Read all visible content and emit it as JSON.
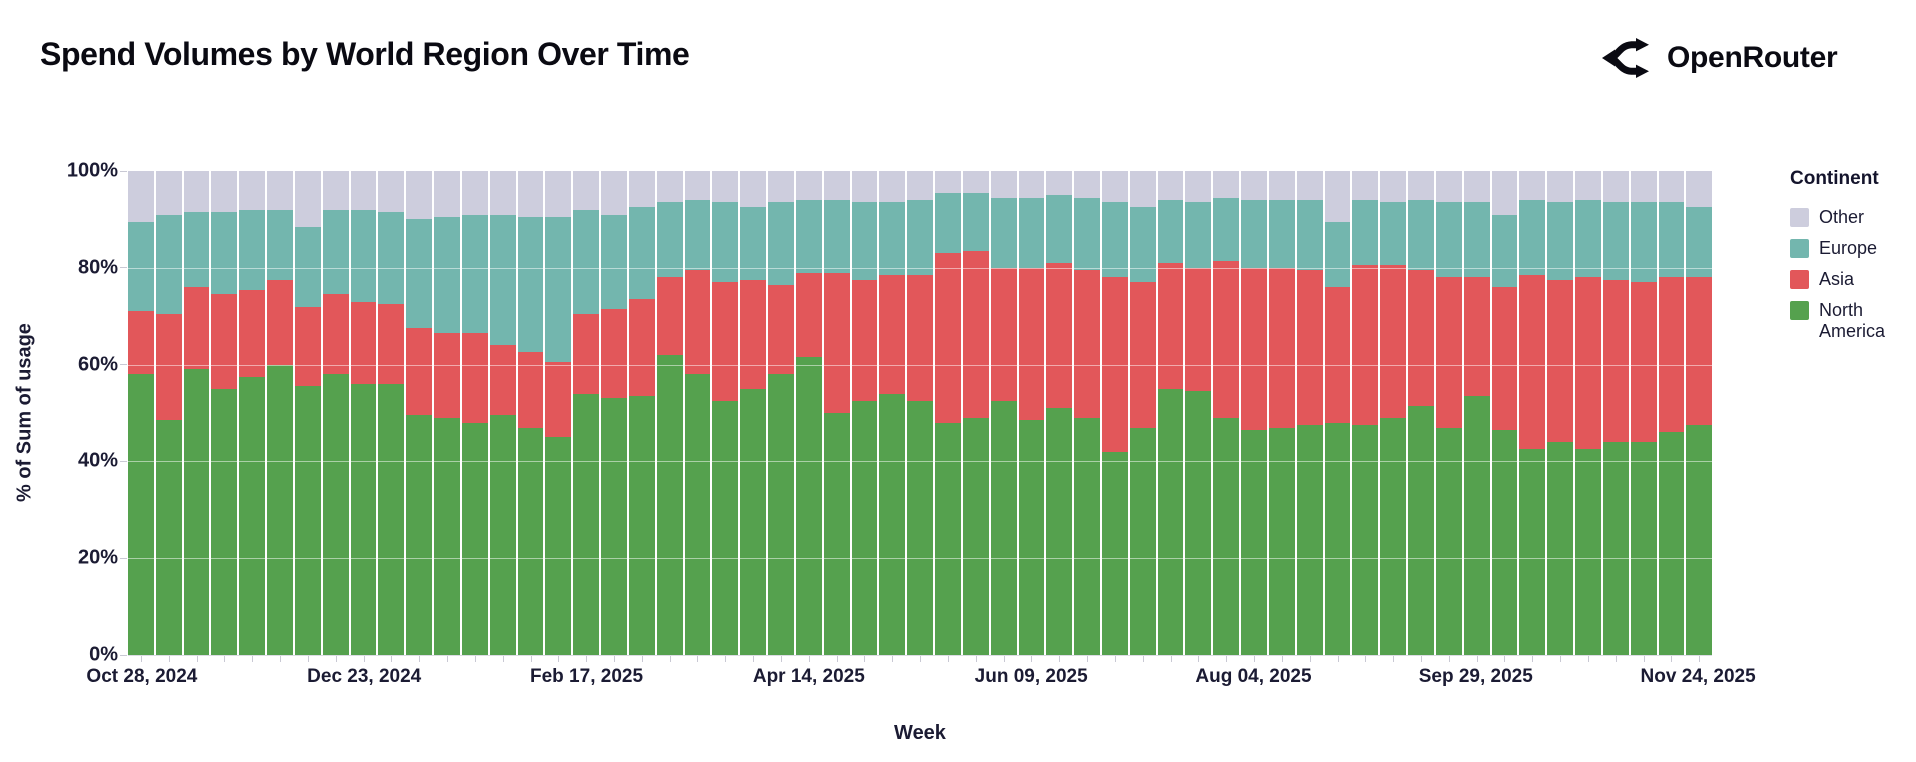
{
  "header": {
    "title": "Spend Volumes by World Region Over Time",
    "brand": "OpenRouter"
  },
  "chart_data": {
    "type": "bar",
    "stacked": true,
    "normalized_percent": true,
    "title": "Spend Volumes by World Region Over Time",
    "xlabel": "Week",
    "ylabel": "% of Sum of usage",
    "ylim": [
      0,
      100
    ],
    "y_ticks": [
      0,
      20,
      40,
      60,
      80,
      100
    ],
    "y_tick_labels": [
      "0%",
      "20%",
      "40%",
      "60%",
      "80%",
      "100%"
    ],
    "x_tick_indices": [
      0,
      8,
      16,
      24,
      32,
      40,
      48,
      56
    ],
    "x_tick_labels": [
      "Oct 28, 2024",
      "Dec 23, 2024",
      "Feb 17, 2025",
      "Apr 14, 2025",
      "Jun 09, 2025",
      "Aug 04, 2025",
      "Sep 29, 2025",
      "Nov 24, 2025"
    ],
    "categories": [
      "Oct 28, 2024",
      "Nov 04, 2024",
      "Nov 11, 2024",
      "Nov 18, 2024",
      "Nov 25, 2024",
      "Dec 02, 2024",
      "Dec 09, 2024",
      "Dec 16, 2024",
      "Dec 23, 2024",
      "Dec 30, 2024",
      "Jan 06, 2025",
      "Jan 13, 2025",
      "Jan 20, 2025",
      "Jan 27, 2025",
      "Feb 03, 2025",
      "Feb 10, 2025",
      "Feb 17, 2025",
      "Feb 24, 2025",
      "Mar 03, 2025",
      "Mar 10, 2025",
      "Mar 17, 2025",
      "Mar 24, 2025",
      "Mar 31, 2025",
      "Apr 07, 2025",
      "Apr 14, 2025",
      "Apr 21, 2025",
      "Apr 28, 2025",
      "May 05, 2025",
      "May 12, 2025",
      "May 19, 2025",
      "May 26, 2025",
      "Jun 02, 2025",
      "Jun 09, 2025",
      "Jun 16, 2025",
      "Jun 23, 2025",
      "Jun 30, 2025",
      "Jul 07, 2025",
      "Jul 14, 2025",
      "Jul 21, 2025",
      "Jul 28, 2025",
      "Aug 04, 2025",
      "Aug 11, 2025",
      "Aug 18, 2025",
      "Aug 25, 2025",
      "Sep 01, 2025",
      "Sep 08, 2025",
      "Sep 15, 2025",
      "Sep 22, 2025",
      "Sep 29, 2025",
      "Oct 06, 2025",
      "Oct 13, 2025",
      "Oct 20, 2025",
      "Oct 27, 2025",
      "Nov 03, 2025",
      "Nov 10, 2025",
      "Nov 17, 2025",
      "Nov 24, 2025"
    ],
    "series": [
      {
        "name": "North America",
        "color": "#55a14e",
        "values": [
          58,
          48.5,
          59,
          55,
          57.5,
          60,
          55.5,
          58,
          56,
          56,
          49.5,
          49,
          48,
          49.5,
          47,
          45,
          54,
          53,
          53.5,
          62,
          58,
          52.5,
          55,
          58,
          61.5,
          50,
          52.5,
          54,
          52.5,
          48,
          49,
          52.5,
          48.5,
          51,
          49,
          42,
          47,
          55,
          54.5,
          49,
          46.5,
          47,
          47.5,
          48,
          47.5,
          49,
          51.5,
          47,
          53.5,
          46.5,
          42.5,
          44,
          42.5,
          44,
          44,
          46,
          47.5
        ]
      },
      {
        "name": "Asia",
        "color": "#e2575a",
        "values": [
          13,
          22,
          17,
          19.5,
          18,
          17.5,
          16.5,
          16.5,
          17,
          16.5,
          18,
          17.5,
          18.5,
          14.5,
          15.5,
          15.5,
          16.5,
          18.5,
          20,
          16,
          21.5,
          24.5,
          22.5,
          18.5,
          17.5,
          29,
          25,
          24.5,
          26,
          35,
          34.5,
          27.5,
          31.5,
          30,
          30.5,
          36,
          30,
          26,
          25.5,
          32.5,
          33.5,
          33,
          32,
          28,
          33,
          31.5,
          28,
          31,
          24.5,
          29.5,
          36,
          33.5,
          35.5,
          33.5,
          33,
          32,
          30.5
        ]
      },
      {
        "name": "Europe",
        "color": "#73b6ae",
        "values": [
          18.5,
          20.5,
          15.5,
          17,
          16.5,
          14.5,
          16.5,
          17.5,
          19,
          19,
          22.5,
          24,
          24.5,
          27,
          28,
          30,
          21.5,
          19.5,
          19,
          15.5,
          14.5,
          16.5,
          15,
          17,
          15,
          15,
          16,
          15,
          15.5,
          12.5,
          12,
          14.5,
          14.5,
          14,
          15,
          15.5,
          15.5,
          13,
          13.5,
          13,
          14,
          14,
          14.5,
          13.5,
          13.5,
          13,
          14.5,
          15.5,
          15.5,
          15,
          15.5,
          16,
          16,
          16,
          16.5,
          15.5,
          14.5
        ]
      },
      {
        "name": "Other",
        "color": "#cdcddd",
        "values": [
          10.5,
          9,
          8.5,
          8.5,
          8,
          8,
          11.5,
          8,
          8,
          8.5,
          10,
          9.5,
          9,
          9,
          9.5,
          9.5,
          8,
          9,
          7.5,
          6.5,
          6,
          6.5,
          7.5,
          6.5,
          6,
          6,
          6.5,
          6.5,
          6,
          4.5,
          4.5,
          5.5,
          5.5,
          5,
          5.5,
          6.5,
          7.5,
          6,
          6.5,
          5.5,
          6,
          6,
          6,
          10.5,
          6,
          6.5,
          6,
          6.5,
          6.5,
          9,
          6,
          6.5,
          6,
          6.5,
          6.5,
          6.5,
          7.5
        ]
      }
    ],
    "legend": {
      "title": "Continent",
      "position": "right",
      "items_top_to_bottom": [
        "Other",
        "Europe",
        "Asia",
        "North America"
      ]
    },
    "grid": "subtle horizontal lines at 20% steps",
    "colors": {
      "axis_text": "#1b1b33",
      "title_text": "#0a0a12",
      "tick_mark": "#c9c9d4",
      "background": "#ffffff"
    }
  }
}
